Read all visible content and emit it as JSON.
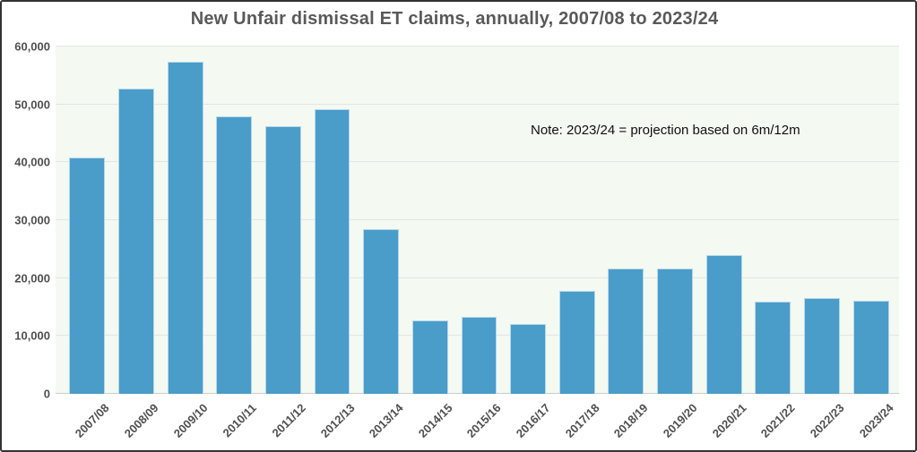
{
  "window": {
    "background": "#ffffff",
    "frame_border_color": "#333333"
  },
  "chart_data": {
    "type": "bar",
    "title": "New Unfair dismissal ET claims, annually, 2007/08 to 2023/24",
    "annotation": "Note: 2023/24 = projection based on 6m/12m",
    "categories": [
      "2007/08",
      "2008/09",
      "2009/10",
      "2010/11",
      "2011/12",
      "2012/13",
      "2013/14",
      "2014/15",
      "2015/16",
      "2016/17",
      "2017/18",
      "2018/19",
      "2019/20",
      "2020/21",
      "2021/22",
      "2022/23",
      "2023/24"
    ],
    "values": [
      40900,
      52700,
      57400,
      47900,
      46300,
      49200,
      28500,
      12700,
      13300,
      12100,
      17800,
      21600,
      21600,
      23900,
      15900,
      16500,
      16100
    ],
    "xlabel": "",
    "ylabel": "",
    "ylim": [
      0,
      60000
    ],
    "ytick_step": 10000,
    "ytick_labels": [
      "0",
      "10,000",
      "20,000",
      "30,000",
      "40,000",
      "50,000",
      "60,000"
    ],
    "grid": true,
    "legend": false,
    "colors": {
      "bar_fill": "#4a9cc9",
      "bar_edge": "#b5d8ec",
      "plot_background": "#f4f9f1",
      "gridline": "#e4e4e4",
      "baseline": "#cccccc",
      "title_text": "#595959",
      "tick_text": "#4f4f4f",
      "note_text": "#111111"
    }
  }
}
